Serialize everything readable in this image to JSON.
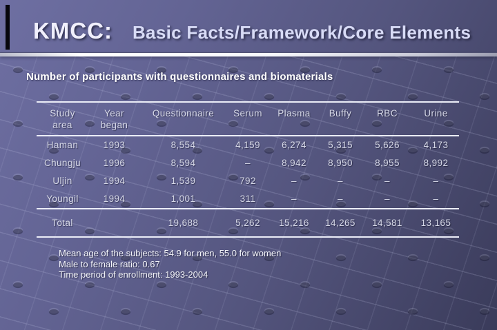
{
  "slide": {
    "title": {
      "prefix": "KMCC:",
      "main": "Basic Facts/Framework/Core Elements"
    },
    "heading": "Number of participants with questionnaires and biomaterials",
    "table": {
      "columns": [
        "Study\narea",
        "Year\nbegan",
        "Questionnaire",
        "Serum",
        "Plasma",
        "Buffy",
        "RBC",
        "Urine"
      ],
      "rows": [
        [
          "Haman",
          "1993",
          "8,554",
          "4,159",
          "6,274",
          "5,315",
          "5,626",
          "4,173"
        ],
        [
          "Chungju",
          "1996",
          "8,594",
          "–",
          "8,942",
          "8,950",
          "8,955",
          "8,992"
        ],
        [
          "Uljin",
          "1994",
          "1,539",
          "792",
          "–",
          "–",
          "–",
          "–"
        ],
        [
          "Youngil",
          "1994",
          "1,001",
          "311",
          "–",
          "–",
          "–",
          "–"
        ]
      ],
      "total_row": [
        "Total",
        "",
        "19,688",
        "5,262",
        "15,216",
        "14,265",
        "14,581",
        "13,165"
      ]
    },
    "notes": [
      "Mean age of the subjects: 54.9 for men, 55.0 for women",
      "Male to female ratio: 0.67",
      "Time period of enrollment: 1993-2004"
    ],
    "colors": {
      "background_top_left": "#6e6fa2",
      "background_bottom_right": "#3a3b5a",
      "title_prefix_text": "#f1f0fd",
      "title_main_text": "#d8dbf6",
      "divider": "#ffffff",
      "heading_text": "#ffffff",
      "table_text": "#d6d8e7",
      "table_line": "#eceef8",
      "notes_text": "#f4f5fa",
      "accent_bar": "#06060c"
    }
  }
}
